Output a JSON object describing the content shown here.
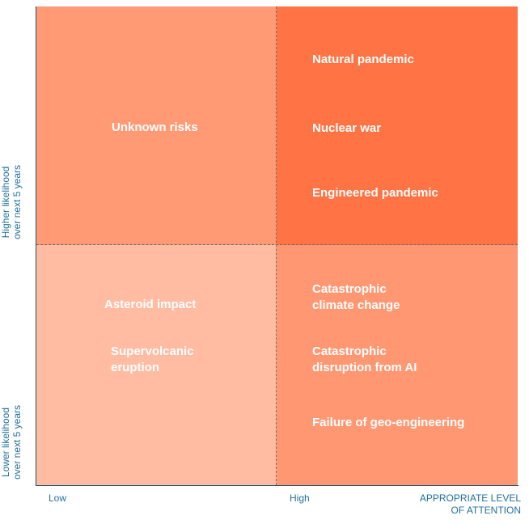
{
  "y_axis": {
    "higher_line1": "Higher likelihood",
    "higher_line2": "over next 5 years",
    "lower_line1": "Lower likelihood",
    "lower_line2": "over next 5 years"
  },
  "x_axis": {
    "low": "Low",
    "high": "High",
    "title_line1": "APPROPRIATE LEVEL",
    "title_line2": "OF ATTENTION"
  },
  "quadrants": {
    "top_left": {
      "items": [
        "Unknown risks"
      ]
    },
    "top_right": {
      "items": [
        "Natural pandemic",
        "Nuclear war",
        "Engineered pandemic"
      ]
    },
    "bottom_left": {
      "items": [
        "Asteroid impact",
        "Supervolcanic eruption"
      ]
    },
    "bottom_right": {
      "items": [
        "Catastrophic climate change",
        "Catastrophic disruption from AI",
        "Failure of geo-engineering"
      ]
    }
  },
  "labels": {
    "unknown_risks": "Unknown risks",
    "natural_pandemic": "Natural pandemic",
    "nuclear_war": "Nuclear war",
    "engineered_pandemic": "Engineered pandemic",
    "asteroid_impact": "Asteroid impact",
    "supervolcanic_line1": "Supervolcanic",
    "supervolcanic_line2": "eruption",
    "climate_line1": "Catastrophic",
    "climate_line2": "climate change",
    "ai_line1": "Catastrophic",
    "ai_line2": "disruption from AI",
    "geoeng": "Failure of geo-engineering"
  },
  "colors": {
    "high_likelihood_low_attention": "#ff9a75",
    "high_likelihood_high_attention": "#ff7345",
    "low_likelihood_low_attention": "#ffbca3",
    "low_likelihood_high_attention": "#ff9772",
    "axis_text": "#1f6f9a"
  }
}
